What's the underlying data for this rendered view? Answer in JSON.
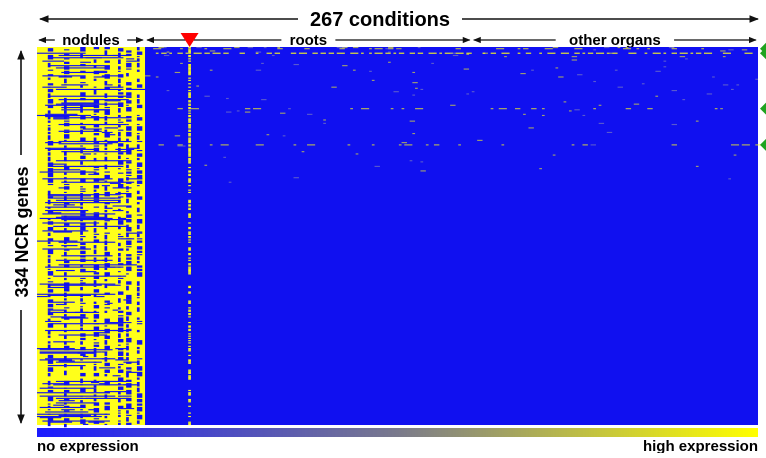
{
  "chart_data": {
    "type": "heatmap",
    "title": "267 conditions",
    "xlabel": "267 conditions",
    "ylabel": "334 NCR genes",
    "n_columns": 267,
    "n_rows": 334,
    "column_groups": [
      {
        "label": "nodules",
        "start": 1,
        "end": 40
      },
      {
        "label": "roots",
        "start": 41,
        "end": 161
      },
      {
        "label": "other organs",
        "start": 162,
        "end": 267
      }
    ],
    "highlighted_column": 57,
    "highlighted_rows": [
      2,
      6,
      55,
      87
    ],
    "colorbar": {
      "low_label": "no expression",
      "high_label": "high expression",
      "colors": [
        "#1a1aff",
        "#7a7a8c",
        "#ffff00"
      ]
    },
    "cell_colors": {
      "background": "#1010f0",
      "high": "#ffff1a"
    }
  }
}
